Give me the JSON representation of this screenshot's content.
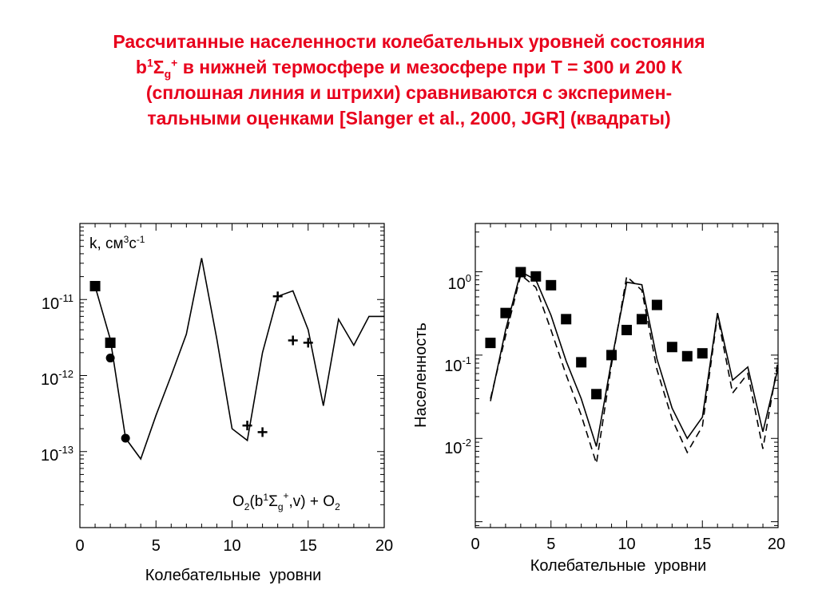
{
  "title": {
    "line1": "Рассчитанные населенности колебательных уровней состояния",
    "line2_b": "b",
    "line2_sup1": "1",
    "line2_sigma": "Σ",
    "line2_sub": "g",
    "line2_sup2": "+",
    "line2_rest": " в нижней термосфере и мезосфере при Т = 300 и 200 К",
    "line3": "(сплошная линия и штрихи) сравниваются с эксперимен-",
    "line4": "тальными оценками [Slanger et al., 2000, JGR] (квадраты)"
  },
  "colors": {
    "title": "#e8001c",
    "ink": "#000000"
  },
  "chart_data": [
    {
      "type": "line",
      "xlabel": "Колебательные  уровни",
      "ylabel": "",
      "ylog": true,
      "xlim": [
        0,
        20
      ],
      "ylim": [
        1e-14,
        1e-10
      ],
      "xticks": [
        "0",
        "5",
        "10",
        "15",
        "20"
      ],
      "yticks": [
        {
          "value": 1e-11,
          "base": "10",
          "exp": "-11"
        },
        {
          "value": 1e-12,
          "base": "10",
          "exp": "-12"
        },
        {
          "value": 1e-13,
          "base": "10",
          "exp": "-13"
        }
      ],
      "unit_label": {
        "pre": "k, см",
        "e1": "3",
        "mid": "с",
        "e2": "-1"
      },
      "annotation": {
        "a": "O",
        "b": "2",
        "c": "(b",
        "d": "1",
        "e": "Σ",
        "f": "g",
        "g": "+",
        "h": ",v) + O",
        "i": "2"
      },
      "series": [
        {
          "style": "solid",
          "x": [
            1,
            2,
            3,
            4,
            5,
            6,
            7,
            8,
            9,
            10,
            11,
            12,
            13,
            14,
            15,
            16,
            17,
            18,
            19,
            20
          ],
          "y": [
            1.5e-11,
            3e-12,
            1.5e-13,
            8e-14,
            3e-13,
            1e-12,
            3.5e-12,
            3.5e-11,
            3e-12,
            2e-13,
            1.4e-13,
            2e-12,
            1.1e-11,
            1.3e-11,
            4e-12,
            4e-13,
            5.5e-12,
            2.5e-12,
            6e-12,
            6e-12
          ]
        }
      ],
      "points": {
        "squares": {
          "x": [
            1,
            2
          ],
          "y": [
            1.5e-11,
            2.7e-12
          ]
        },
        "circles": {
          "x": [
            2,
            3
          ],
          "y": [
            1.7e-12,
            1.5e-13
          ]
        },
        "plus": {
          "x": [
            11,
            12,
            13,
            14,
            15
          ],
          "y": [
            2.2e-13,
            1.8e-13,
            1.1e-11,
            2.9e-12,
            2.7e-12
          ]
        }
      }
    },
    {
      "type": "line",
      "xlabel": "Колебательные  уровни",
      "ylabel": "Населенность",
      "ylog": true,
      "xlim": [
        0,
        20
      ],
      "ylim": [
        0.00085,
        3.8
      ],
      "xticks": [
        "0",
        "5",
        "10",
        "15",
        "20"
      ],
      "yticks": [
        {
          "value": 1,
          "base": "10",
          "exp": "0"
        },
        {
          "value": 0.1,
          "base": "10",
          "exp": "-1"
        },
        {
          "value": 0.01,
          "base": "10",
          "exp": "-2"
        }
      ],
      "series": [
        {
          "name": "Т = 300 К",
          "style": "solid",
          "x": [
            1,
            2,
            3,
            4,
            5,
            6,
            7,
            8,
            9,
            10,
            11,
            12,
            13,
            14,
            15,
            16,
            17,
            18,
            19,
            20
          ],
          "y": [
            0.028,
            0.2,
            1.0,
            0.8,
            0.3,
            0.085,
            0.03,
            0.008,
            0.085,
            0.75,
            0.7,
            0.09,
            0.023,
            0.01,
            0.018,
            0.32,
            0.05,
            0.072,
            0.012,
            0.07
          ]
        },
        {
          "name": "Т = 200 К",
          "style": "dashed",
          "x": [
            1,
            2,
            3,
            4,
            5,
            6,
            7,
            8,
            9,
            10,
            11,
            12,
            13,
            14,
            15,
            16,
            17,
            18,
            19,
            20
          ],
          "y": [
            0.03,
            0.17,
            0.92,
            0.65,
            0.2,
            0.058,
            0.019,
            0.005,
            0.077,
            0.88,
            0.6,
            0.067,
            0.017,
            0.0068,
            0.014,
            0.3,
            0.035,
            0.06,
            0.0075,
            0.085
          ]
        }
      ],
      "points": {
        "squares": {
          "x": [
            1,
            2,
            3,
            4,
            5,
            6,
            7,
            8,
            9,
            10,
            11,
            12,
            13,
            14,
            15
          ],
          "y": [
            0.14,
            0.32,
            0.99,
            0.88,
            0.69,
            0.27,
            0.082,
            0.034,
            0.1,
            0.2,
            0.27,
            0.4,
            0.125,
            0.097,
            0.105
          ]
        }
      }
    }
  ]
}
